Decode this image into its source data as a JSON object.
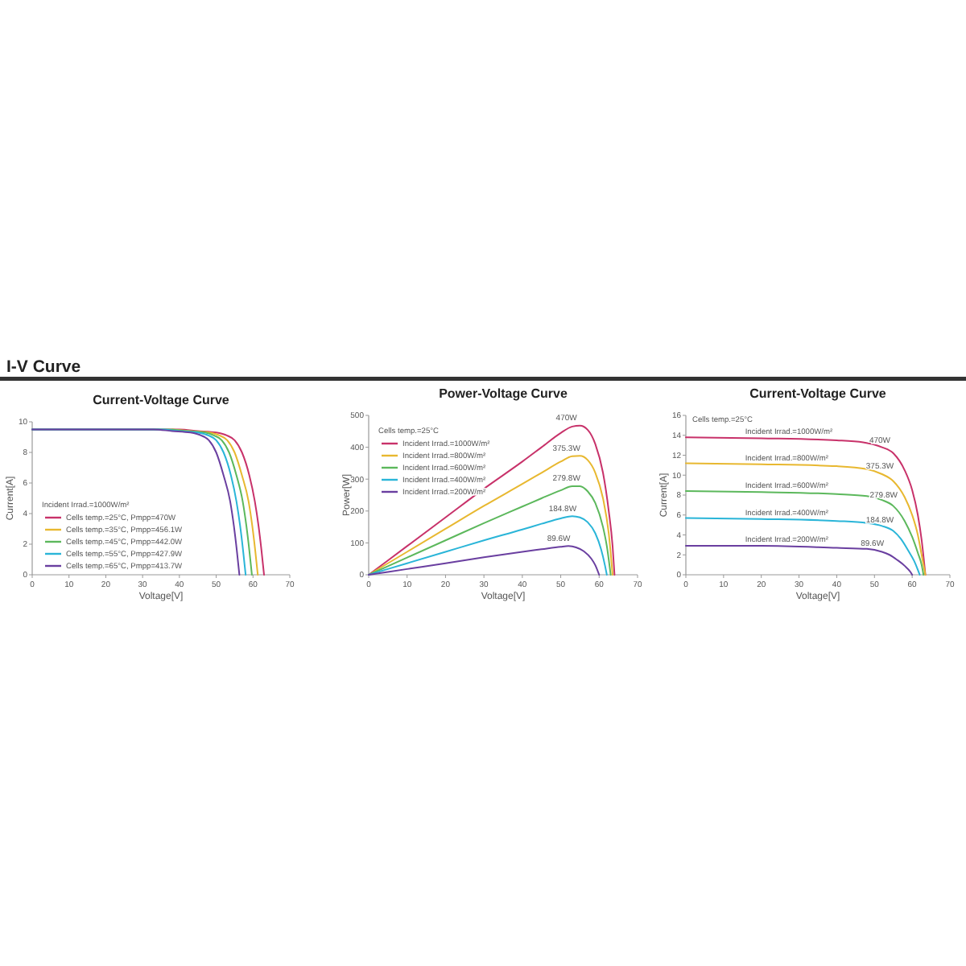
{
  "chart_data": [
    {
      "type": "line",
      "title": "Current-Voltage Curve",
      "xlabel": "Voltage[V]",
      "ylabel": "Current[A]",
      "annotations": [
        "I-V Curve"
      ],
      "legend_title": "Incident Irrad.=1000W/m²",
      "legend": "bottom left",
      "xlim": [
        0,
        70
      ],
      "xticks": [
        0,
        10,
        20,
        30,
        40,
        50,
        60,
        70
      ],
      "ylim": [
        0,
        10
      ],
      "yticks": [
        0,
        2,
        4,
        6,
        8,
        10
      ],
      "series": [
        {
          "name": "Cells temp.=25°C, Pmpp=470W",
          "color": "#c8326a",
          "x": [
            0,
            40,
            45,
            50,
            53,
            55,
            57,
            59,
            60.5,
            61.5,
            62.3,
            63
          ],
          "values": [
            9.5,
            9.5,
            9.4,
            9.3,
            9.1,
            8.8,
            8.0,
            6.5,
            4.8,
            3.2,
            1.6,
            0
          ]
        },
        {
          "name": "Cells temp.=35°C, Pmpp=456.1W",
          "color": "#e8b830",
          "x": [
            38,
            43,
            48,
            51,
            53,
            55,
            57,
            58.8,
            59.8,
            60.6,
            61.3
          ],
          "values": [
            9.5,
            9.4,
            9.3,
            9.1,
            8.8,
            8.0,
            6.5,
            4.8,
            3.2,
            1.6,
            0
          ]
        },
        {
          "name": "Cells temp.=45°C, Pmpp=442.0W",
          "color": "#5cb85c",
          "x": [
            0,
            37,
            42,
            47,
            49.5,
            51.5,
            53.5,
            55.5,
            57.2,
            58.2,
            59,
            59.7
          ],
          "values": [
            9.5,
            9.5,
            9.4,
            9.3,
            9.1,
            8.8,
            8.0,
            6.5,
            4.8,
            3.2,
            1.6,
            0
          ]
        },
        {
          "name": "Cells temp.=55°C, Pmpp=427.9W",
          "color": "#2ab5d8",
          "x": [
            0,
            35,
            40,
            45,
            48,
            50,
            52,
            54,
            55.5,
            56.5,
            57.3,
            58
          ],
          "values": [
            9.5,
            9.5,
            9.4,
            9.3,
            9.1,
            8.8,
            8.0,
            6.5,
            4.8,
            3.2,
            1.6,
            0
          ]
        },
        {
          "name": "Cells temp.=65°C, Pmpp=413.7W",
          "color": "#6a3fa0",
          "x": [
            0,
            33,
            38,
            43,
            46,
            48,
            50,
            52,
            53.8,
            54.8,
            55.6,
            56.3
          ],
          "values": [
            9.5,
            9.5,
            9.4,
            9.3,
            9.1,
            8.8,
            8.0,
            6.5,
            4.8,
            3.2,
            1.6,
            0
          ]
        }
      ]
    },
    {
      "type": "line",
      "title": "Power-Voltage Curve",
      "xlabel": "Voltage[V]",
      "ylabel": "Power[W]",
      "legend_title": "Cells temp.=25°C",
      "legend": "top left",
      "xlim": [
        0,
        70
      ],
      "xticks": [
        0,
        10,
        20,
        30,
        40,
        50,
        60,
        70
      ],
      "ylim": [
        0,
        500
      ],
      "yticks": [
        0,
        100,
        200,
        300,
        400,
        500
      ],
      "annotations": [
        {
          "text": "470W",
          "x": 54,
          "y": 470
        },
        {
          "text": "375.3W",
          "x": 54,
          "y": 375
        },
        {
          "text": "279.8W",
          "x": 54,
          "y": 280
        },
        {
          "text": "184.8W",
          "x": 53,
          "y": 185
        },
        {
          "text": "89.6W",
          "x": 52,
          "y": 90
        }
      ],
      "series": [
        {
          "name": "Incident Irrad.=1000W/m²",
          "color": "#c8326a",
          "x": [
            0,
            10,
            20,
            30,
            40,
            45,
            50,
            53,
            55,
            57,
            59,
            61,
            62.5,
            63.5,
            64
          ],
          "values": [
            0,
            90,
            180,
            270,
            355,
            400,
            445,
            465,
            468,
            455,
            410,
            320,
            200,
            90,
            0
          ]
        },
        {
          "name": "Incident Irrad.=800W/m²",
          "color": "#e8b830",
          "x": [
            0,
            10,
            20,
            30,
            40,
            45,
            50,
            53,
            55,
            57,
            59,
            61,
            62.5,
            63.5
          ],
          "values": [
            0,
            72,
            144,
            216,
            285,
            320,
            355,
            372,
            373,
            360,
            320,
            240,
            130,
            0
          ]
        },
        {
          "name": "Incident Irrad.=600W/m²",
          "color": "#5cb85c",
          "x": [
            0,
            10,
            20,
            30,
            40,
            45,
            50,
            53,
            55,
            57,
            59,
            61,
            62,
            63
          ],
          "values": [
            0,
            54,
            108,
            162,
            214,
            240,
            265,
            278,
            278,
            262,
            225,
            150,
            90,
            0
          ]
        },
        {
          "name": "Incident Irrad.=400W/m²",
          "color": "#2ab5d8",
          "x": [
            0,
            10,
            20,
            30,
            40,
            45,
            50,
            53,
            55,
            57,
            59,
            60.5,
            61.5,
            62
          ],
          "values": [
            0,
            36,
            72,
            108,
            142,
            160,
            177,
            184,
            180,
            165,
            130,
            80,
            30,
            0
          ]
        },
        {
          "name": "Incident Irrad.=200W/m²",
          "color": "#6a3fa0",
          "x": [
            0,
            10,
            20,
            30,
            40,
            45,
            50,
            52,
            54,
            56,
            58,
            59,
            60
          ],
          "values": [
            0,
            18,
            36,
            55,
            72,
            80,
            88,
            90,
            86,
            74,
            50,
            30,
            0
          ]
        }
      ]
    },
    {
      "type": "line",
      "title": "Current-Voltage Curve",
      "xlabel": "Voltage[V]",
      "ylabel": "Current[A]",
      "legend_title": "Cells temp.=25°C",
      "xlim": [
        0,
        70
      ],
      "xticks": [
        0,
        10,
        20,
        30,
        40,
        50,
        60,
        70
      ],
      "ylim": [
        0,
        16
      ],
      "yticks": [
        0,
        2,
        4,
        6,
        8,
        10,
        12,
        14,
        16
      ],
      "annotations": [
        {
          "text": "470W",
          "x": 54,
          "y": 12.8
        },
        {
          "text": "375.3W",
          "x": 54,
          "y": 10.2
        },
        {
          "text": "279.8W",
          "x": 55,
          "y": 7.3
        },
        {
          "text": "184.8W",
          "x": 54,
          "y": 4.8
        },
        {
          "text": "89.6W",
          "x": 52,
          "y": 2.4
        }
      ],
      "series": [
        {
          "name": "Incident Irrad.=1000W/m²",
          "color": "#c8326a",
          "x": [
            0,
            20,
            40,
            47,
            52,
            55,
            58,
            60,
            61.5,
            62.5,
            63.5
          ],
          "values": [
            13.8,
            13.7,
            13.5,
            13.3,
            12.8,
            12.2,
            10.5,
            8.5,
            6,
            3.5,
            0
          ]
        },
        {
          "name": "Incident Irrad.=800W/m²",
          "color": "#e8b830",
          "x": [
            0,
            20,
            40,
            48,
            52,
            55,
            58,
            60,
            61.5,
            62.5,
            63.5
          ],
          "values": [
            11.2,
            11.1,
            10.9,
            10.6,
            10.1,
            9.4,
            7.8,
            6,
            4,
            2,
            0
          ]
        },
        {
          "name": "Incident Irrad.=600W/m²",
          "color": "#5cb85c",
          "x": [
            0,
            20,
            40,
            48,
            52,
            55,
            58,
            60,
            61.5,
            62.5,
            63
          ],
          "values": [
            8.4,
            8.3,
            8.1,
            7.9,
            7.5,
            6.9,
            5.4,
            3.8,
            2.2,
            1,
            0
          ]
        },
        {
          "name": "Incident Irrad.=400W/m²",
          "color": "#2ab5d8",
          "x": [
            0,
            20,
            40,
            48,
            52,
            55,
            57,
            59,
            60.5,
            61.5,
            62
          ],
          "values": [
            5.7,
            5.6,
            5.4,
            5.2,
            4.9,
            4.4,
            3.6,
            2.4,
            1.4,
            0.5,
            0
          ]
        },
        {
          "name": "Incident Irrad.=200W/m²",
          "color": "#6a3fa0",
          "x": [
            0,
            20,
            40,
            48,
            52,
            54,
            56,
            58,
            59.5,
            60
          ],
          "values": [
            2.9,
            2.9,
            2.7,
            2.6,
            2.3,
            2.0,
            1.5,
            0.9,
            0.3,
            0
          ]
        }
      ]
    }
  ]
}
